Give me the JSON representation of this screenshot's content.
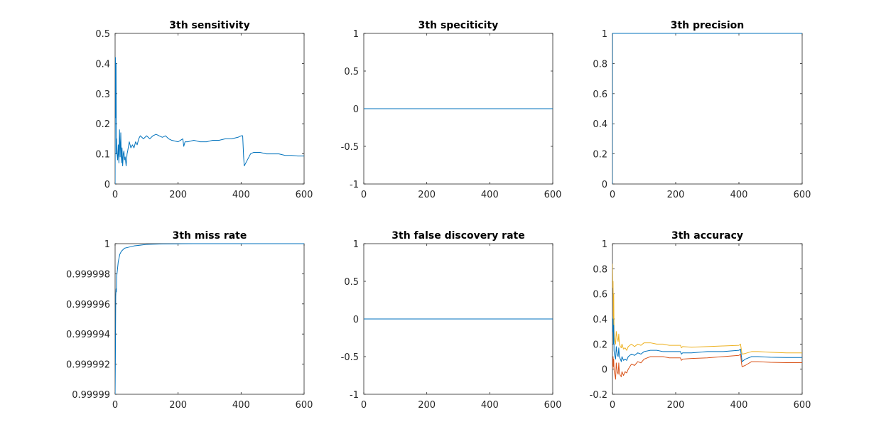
{
  "chart_data": [
    {
      "type": "line",
      "title": "3th sensitivity",
      "xlim": [
        0,
        600
      ],
      "ylim": [
        0,
        0.5
      ],
      "xticks": [
        0,
        200,
        400,
        600
      ],
      "xtick_labels": [
        "0",
        "200",
        "400",
        "600"
      ],
      "yticks": [
        0,
        0.1,
        0.2,
        0.3,
        0.4,
        0.5
      ],
      "ytick_labels": [
        "0",
        "0.1",
        "0.2",
        "0.3",
        "0.4",
        "0.5"
      ],
      "grid": false,
      "series": [
        {
          "color": "#0072bd",
          "x": [
            0,
            1,
            2,
            3,
            4,
            5,
            6,
            8,
            10,
            12,
            14,
            16,
            18,
            20,
            22,
            24,
            26,
            28,
            30,
            32,
            35,
            38,
            40,
            45,
            50,
            55,
            60,
            65,
            70,
            75,
            80,
            90,
            100,
            110,
            120,
            130,
            140,
            150,
            160,
            170,
            180,
            200,
            215,
            218,
            222,
            230,
            250,
            270,
            290,
            310,
            330,
            350,
            370,
            390,
            400,
            405,
            408,
            410,
            420,
            430,
            440,
            460,
            480,
            500,
            520,
            540,
            560,
            580,
            600
          ],
          "y": [
            0.0,
            0.42,
            0.22,
            0.4,
            0.1,
            0.15,
            0.1,
            0.08,
            0.13,
            0.07,
            0.18,
            0.09,
            0.17,
            0.07,
            0.12,
            0.06,
            0.1,
            0.11,
            0.08,
            0.09,
            0.06,
            0.1,
            0.11,
            0.14,
            0.12,
            0.13,
            0.12,
            0.14,
            0.13,
            0.15,
            0.16,
            0.15,
            0.16,
            0.15,
            0.16,
            0.165,
            0.16,
            0.155,
            0.16,
            0.15,
            0.145,
            0.14,
            0.15,
            0.125,
            0.14,
            0.14,
            0.145,
            0.14,
            0.14,
            0.145,
            0.145,
            0.15,
            0.15,
            0.155,
            0.16,
            0.16,
            0.09,
            0.06,
            0.08,
            0.1,
            0.105,
            0.105,
            0.1,
            0.1,
            0.1,
            0.095,
            0.095,
            0.093,
            0.093
          ]
        }
      ]
    },
    {
      "type": "line",
      "title": "3th speciticity",
      "xlim": [
        0,
        600
      ],
      "ylim": [
        -1,
        1
      ],
      "xticks": [
        0,
        200,
        400,
        600
      ],
      "xtick_labels": [
        "0",
        "200",
        "400",
        "600"
      ],
      "yticks": [
        -1,
        -0.5,
        0,
        0.5,
        1
      ],
      "ytick_labels": [
        "-1",
        "-0.5",
        "0",
        "0.5",
        "1"
      ],
      "grid": false,
      "series": [
        {
          "color": "#0072bd",
          "x": [
            0,
            600
          ],
          "y": [
            0,
            0
          ]
        }
      ]
    },
    {
      "type": "line",
      "title": "3th precision",
      "xlim": [
        0,
        600
      ],
      "ylim": [
        0,
        1
      ],
      "xticks": [
        0,
        200,
        400,
        600
      ],
      "xtick_labels": [
        "0",
        "200",
        "400",
        "600"
      ],
      "yticks": [
        0,
        0.2,
        0.4,
        0.6,
        0.8,
        1
      ],
      "ytick_labels": [
        "0",
        "0.2",
        "0.4",
        "0.6",
        "0.8",
        "1"
      ],
      "grid": false,
      "series": [
        {
          "color": "#0072bd",
          "x": [
            0,
            0.3,
            600
          ],
          "y": [
            0,
            1,
            1
          ]
        }
      ]
    },
    {
      "type": "line",
      "title": "3th miss rate",
      "xlim": [
        0,
        600
      ],
      "ylim": [
        0.99999,
        1
      ],
      "xticks": [
        0,
        200,
        400,
        600
      ],
      "xtick_labels": [
        "0",
        "200",
        "400",
        "600"
      ],
      "yticks": [
        0.99999,
        0.999992,
        0.999994,
        0.999996,
        0.999998,
        1
      ],
      "ytick_labels": [
        "0.99999",
        "0.999992",
        "0.999994",
        "0.999996",
        "0.999998",
        "1"
      ],
      "grid": false,
      "series": [
        {
          "color": "#0072bd",
          "x": [
            0,
            1,
            2,
            3,
            4,
            5,
            6,
            8,
            10,
            15,
            20,
            30,
            40,
            60,
            80,
            100,
            150,
            200,
            250,
            600
          ],
          "y": [
            0.99999,
            0.9999925,
            0.9999965,
            0.999997,
            0.9999968,
            0.9999978,
            0.999998,
            0.9999984,
            0.9999988,
            0.9999993,
            0.9999995,
            0.9999997,
            0.99999975,
            0.99999985,
            0.9999999,
            0.99999995,
            0.99999998,
            0.99999999,
            1.0,
            1.0
          ]
        }
      ]
    },
    {
      "type": "line",
      "title": "3th false discovery rate",
      "xlim": [
        0,
        600
      ],
      "ylim": [
        -1,
        1
      ],
      "xticks": [
        0,
        200,
        400,
        600
      ],
      "xtick_labels": [
        "0",
        "200",
        "400",
        "600"
      ],
      "yticks": [
        -1,
        -0.5,
        0,
        0.5,
        1
      ],
      "ytick_labels": [
        "-1",
        "-0.5",
        "0",
        "0.5",
        "1"
      ],
      "grid": false,
      "series": [
        {
          "color": "#0072bd",
          "x": [
            0,
            600
          ],
          "y": [
            0,
            0
          ]
        }
      ]
    },
    {
      "type": "line",
      "title": "3th accuracy",
      "xlim": [
        0,
        600
      ],
      "ylim": [
        -0.2,
        1
      ],
      "xticks": [
        0,
        200,
        400,
        600
      ],
      "xtick_labels": [
        "0",
        "200",
        "400",
        "600"
      ],
      "yticks": [
        -0.2,
        0,
        0.2,
        0.4,
        0.6,
        0.8,
        1
      ],
      "ytick_labels": [
        "-0.2",
        "0",
        "0.2",
        "0.4",
        "0.6",
        "0.8",
        "1"
      ],
      "grid": false,
      "series": [
        {
          "color": "#edb120",
          "x": [
            0,
            1,
            2,
            3,
            4,
            5,
            6,
            8,
            10,
            12,
            15,
            18,
            20,
            22,
            25,
            28,
            30,
            35,
            40,
            45,
            50,
            60,
            70,
            80,
            90,
            100,
            120,
            140,
            160,
            180,
            200,
            215,
            218,
            222,
            250,
            300,
            350,
            400,
            405,
            408,
            410,
            420,
            440,
            460,
            500,
            550,
            600
          ],
          "y": [
            0.84,
            0.65,
            0.7,
            0.35,
            0.6,
            0.3,
            0.25,
            0.22,
            0.2,
            0.3,
            0.25,
            0.22,
            0.28,
            0.2,
            0.18,
            0.17,
            0.2,
            0.16,
            0.17,
            0.15,
            0.18,
            0.2,
            0.18,
            0.2,
            0.19,
            0.21,
            0.21,
            0.2,
            0.2,
            0.19,
            0.19,
            0.19,
            0.17,
            0.18,
            0.175,
            0.18,
            0.185,
            0.19,
            0.2,
            0.15,
            0.12,
            0.125,
            0.14,
            0.14,
            0.135,
            0.13,
            0.13
          ]
        },
        {
          "color": "#0072bd",
          "x": [
            0,
            1,
            2,
            3,
            4,
            5,
            6,
            8,
            10,
            12,
            15,
            18,
            20,
            22,
            25,
            28,
            30,
            35,
            40,
            45,
            50,
            60,
            70,
            80,
            90,
            100,
            120,
            140,
            160,
            180,
            200,
            215,
            218,
            222,
            250,
            300,
            350,
            400,
            405,
            408,
            410,
            420,
            440,
            460,
            500,
            550,
            600
          ],
          "y": [
            0.42,
            0.3,
            0.4,
            0.2,
            0.35,
            0.15,
            0.12,
            0.1,
            0.08,
            0.18,
            0.12,
            0.1,
            0.17,
            0.1,
            0.08,
            0.06,
            0.1,
            0.07,
            0.08,
            0.07,
            0.1,
            0.12,
            0.11,
            0.13,
            0.12,
            0.14,
            0.15,
            0.15,
            0.14,
            0.14,
            0.14,
            0.14,
            0.12,
            0.13,
            0.13,
            0.14,
            0.14,
            0.15,
            0.16,
            0.1,
            0.06,
            0.08,
            0.1,
            0.1,
            0.095,
            0.093,
            0.093
          ]
        },
        {
          "color": "#d95319",
          "x": [
            0,
            1,
            2,
            3,
            4,
            5,
            6,
            8,
            10,
            12,
            15,
            18,
            20,
            22,
            25,
            28,
            30,
            35,
            40,
            45,
            50,
            60,
            70,
            80,
            90,
            100,
            120,
            140,
            160,
            180,
            200,
            215,
            218,
            222,
            250,
            300,
            350,
            400,
            405,
            408,
            410,
            420,
            440,
            460,
            500,
            550,
            600
          ],
          "y": [
            0.0,
            0.05,
            0.1,
            0.02,
            0.08,
            0.0,
            -0.03,
            -0.05,
            -0.08,
            0.05,
            -0.02,
            -0.04,
            0.05,
            -0.03,
            -0.05,
            -0.06,
            -0.02,
            -0.05,
            -0.02,
            -0.03,
            0.0,
            0.04,
            0.03,
            0.06,
            0.05,
            0.08,
            0.1,
            0.1,
            0.1,
            0.09,
            0.09,
            0.09,
            0.07,
            0.08,
            0.085,
            0.09,
            0.1,
            0.11,
            0.12,
            0.05,
            0.02,
            0.03,
            0.06,
            0.06,
            0.055,
            0.052,
            0.052
          ]
        }
      ]
    }
  ]
}
